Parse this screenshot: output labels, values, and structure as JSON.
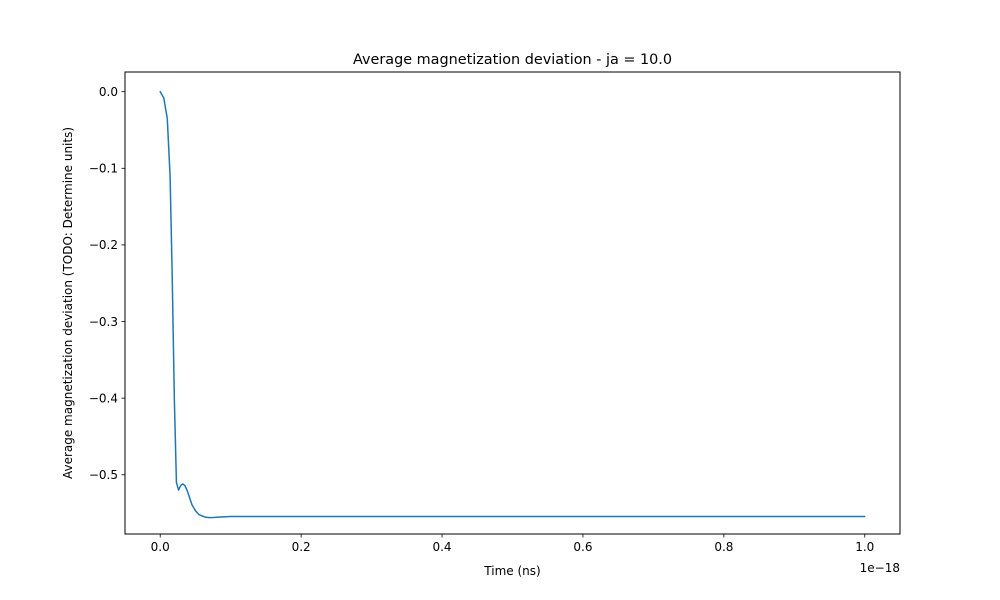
{
  "chart_data": {
    "type": "line",
    "title": "Average magnetization deviation - ja = 10.0",
    "xlabel": "Time (ns)",
    "ylabel": "Average magnetization deviation (TODO: Determine units)",
    "x_offset_text": "1e−18",
    "xlim": [
      -0.05,
      1.05
    ],
    "ylim": [
      -0.5773,
      0.0257
    ],
    "x_ticks": [
      0.0,
      0.2,
      0.4,
      0.6,
      0.8,
      1.0
    ],
    "x_tick_labels": [
      "0.0",
      "0.2",
      "0.4",
      "0.6",
      "0.8",
      "1.0"
    ],
    "y_ticks": [
      0.0,
      -0.1,
      -0.2,
      -0.3,
      -0.4,
      -0.5
    ],
    "y_tick_labels": [
      "0.0",
      "−0.1",
      "−0.2",
      "−0.3",
      "−0.4",
      "−0.5"
    ],
    "grid": false,
    "legend": "none",
    "series": [
      {
        "color": "#1f77b4",
        "x": [
          0.0,
          0.005,
          0.01,
          0.014,
          0.017,
          0.02,
          0.023,
          0.026,
          0.028,
          0.03,
          0.032,
          0.035,
          0.038,
          0.041,
          0.045,
          0.05,
          0.055,
          0.06,
          0.065,
          0.07,
          0.075,
          0.08,
          0.09,
          0.1,
          0.12,
          0.15,
          0.2,
          0.3,
          0.4,
          0.5,
          0.6,
          0.7,
          0.8,
          0.9,
          1.0
        ],
        "y": [
          0.0,
          -0.008,
          -0.035,
          -0.11,
          -0.24,
          -0.4,
          -0.51,
          -0.52,
          -0.516,
          -0.513,
          -0.512,
          -0.514,
          -0.52,
          -0.528,
          -0.539,
          -0.547,
          -0.552,
          -0.554,
          -0.5555,
          -0.556,
          -0.5558,
          -0.5555,
          -0.555,
          -0.5545,
          -0.5544,
          -0.5544,
          -0.5544,
          -0.5544,
          -0.5544,
          -0.5544,
          -0.5544,
          -0.5544,
          -0.5544,
          -0.5544,
          -0.5544
        ]
      }
    ]
  }
}
